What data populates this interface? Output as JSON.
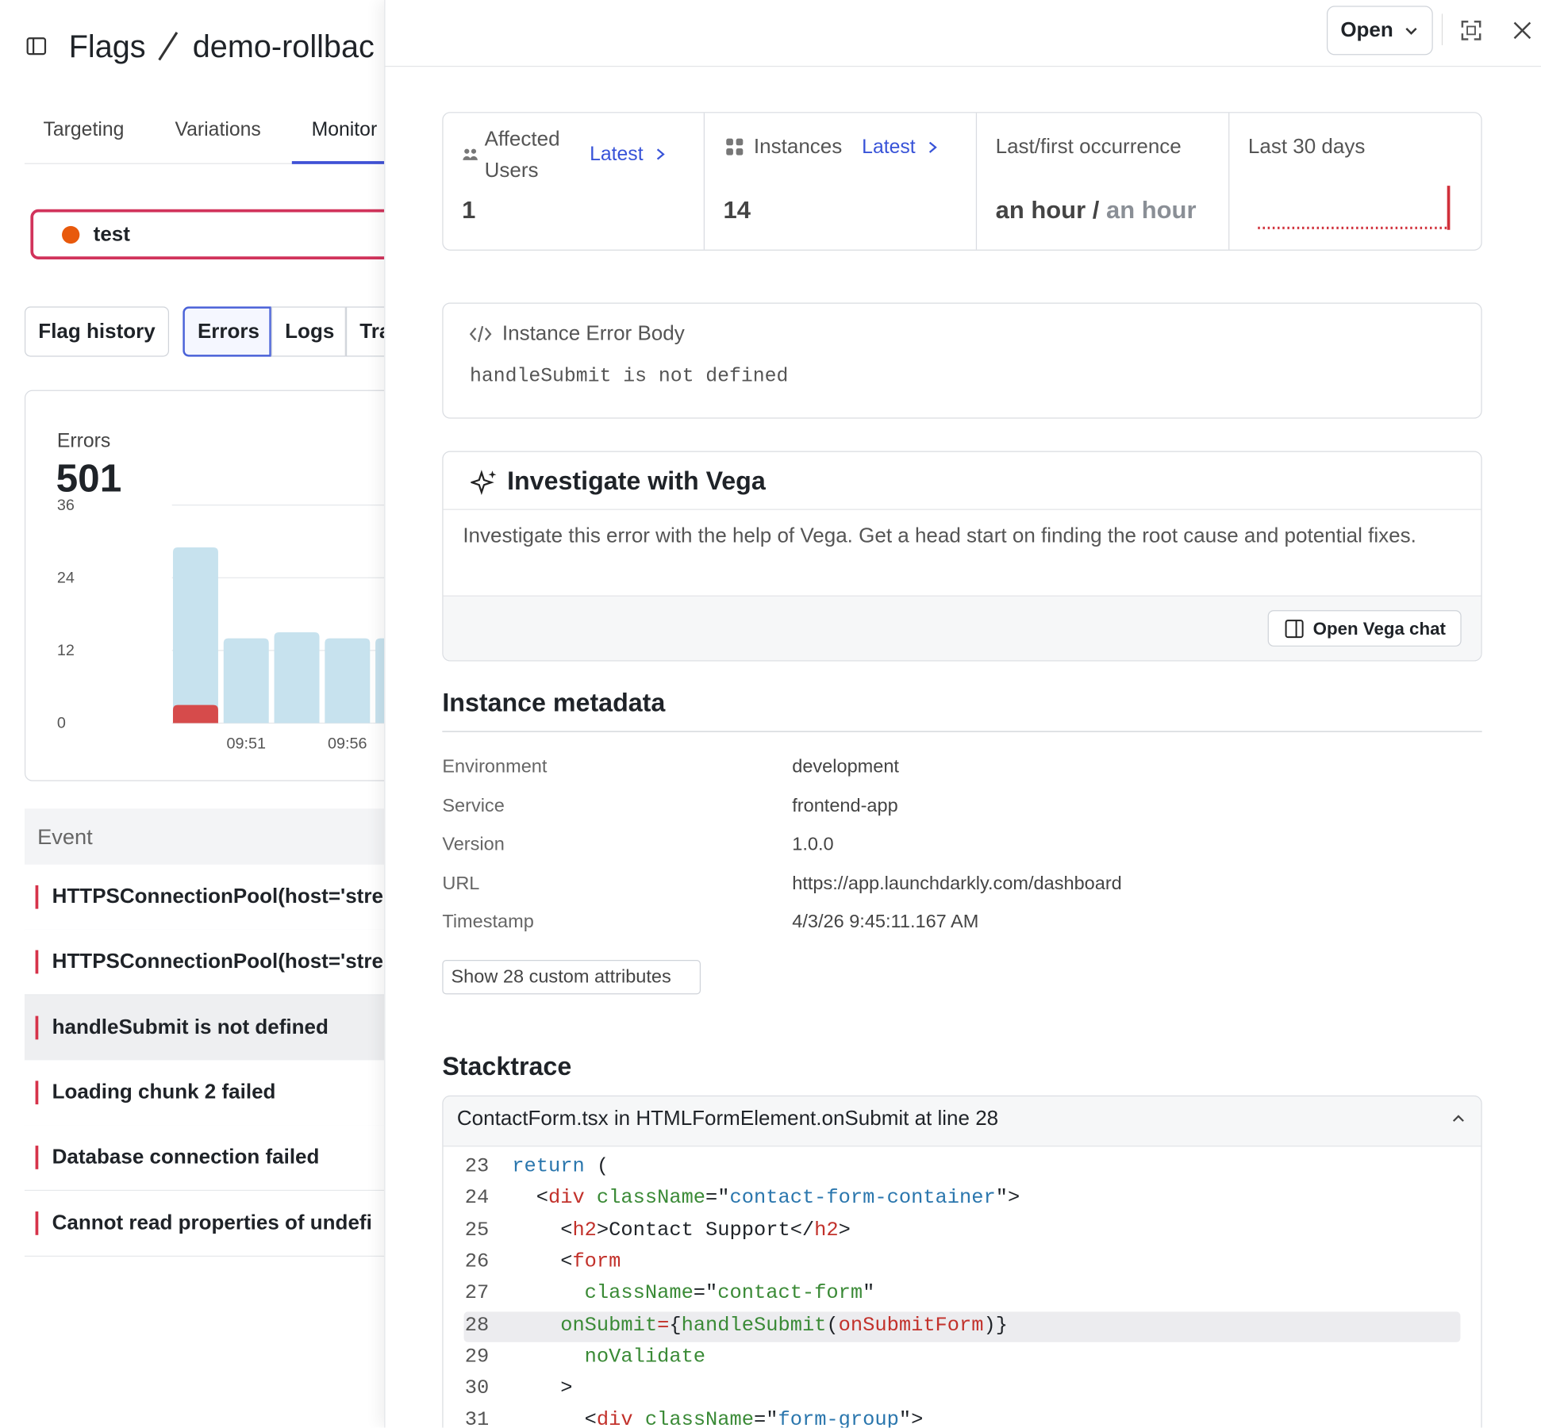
{
  "header": {
    "breadcrumb": [
      "Flags",
      "demo-rollbac"
    ]
  },
  "tabs": {
    "items": [
      "Targeting",
      "Variations",
      "Monitor"
    ],
    "active": 2
  },
  "environment": {
    "name": "test",
    "color": "#e8590c"
  },
  "segments": {
    "items": [
      "Flag history",
      "Errors",
      "Logs",
      "Tra"
    ],
    "active": 1
  },
  "errors_chart": {
    "title": "Errors",
    "total": 501,
    "categories": [
      null,
      "09:51",
      null,
      "09:56",
      null
    ],
    "ylim": [
      0,
      36
    ],
    "yticks": [
      0,
      12,
      24,
      36
    ],
    "grid": true,
    "series": [
      {
        "color": "#c7e2ee",
        "values": [
          29,
          14,
          15,
          14,
          14
        ]
      },
      {
        "color": "#d64b4b",
        "values": [
          3,
          null,
          null,
          null,
          null
        ]
      }
    ]
  },
  "events": {
    "header": "Event",
    "selected": 2,
    "rows": [
      "HTTPSConnectionPool(host='stre",
      "HTTPSConnectionPool(host='stre",
      "handleSubmit is not defined",
      "Loading chunk 2 failed",
      "Database connection failed",
      "Cannot read properties of undefi"
    ]
  },
  "drawer": {
    "status": "Open"
  },
  "stats": {
    "affected_users": {
      "label": "Affected Users",
      "link": "Latest",
      "value": 1
    },
    "instances": {
      "label": "Instances",
      "link": "Latest",
      "value": 14
    },
    "occurrence": {
      "label": "Last/first occurrence",
      "last": "an hour",
      "separator": "/",
      "first": "an hour"
    },
    "trend": {
      "label": "Last 30 days"
    }
  },
  "error_body": {
    "title": "Instance Error Body",
    "message": "handleSubmit is not defined"
  },
  "vega": {
    "title": "Investigate with Vega",
    "description": "Investigate this error with the help of Vega. Get a head start on finding the root cause and potential fixes.",
    "button": "Open Vega chat"
  },
  "metadata": {
    "title": "Instance metadata",
    "button": "Show 28 custom attributes",
    "rows": [
      [
        "Environment",
        "development"
      ],
      [
        "Service",
        "frontend-app"
      ],
      [
        "Version",
        "1.0.0"
      ],
      [
        "URL",
        "https://app.launchdarkly.com/dashboard"
      ],
      [
        "Timestamp",
        "4/3/26 9:45:11.167 AM"
      ]
    ]
  },
  "stacktrace": {
    "title": "Stacktrace",
    "frame": "ContactForm.tsx in HTMLFormElement.onSubmit at line 28",
    "highlight_line": 28,
    "lines": [
      {
        "number": 23,
        "tokens": [
          {
            "text": "return",
            "color": "#2a76ad"
          },
          {
            "text": " (",
            "color": "#1f2328"
          }
        ]
      },
      {
        "number": 24,
        "tokens": [
          {
            "text": "  <",
            "color": "#1f2328"
          },
          {
            "text": "div",
            "color": "#c2312b"
          },
          {
            "text": " className",
            "color": "#3a8a36"
          },
          {
            "text": "=\"",
            "color": "#1f2328"
          },
          {
            "text": "contact-form-container",
            "color": "#2a76ad"
          },
          {
            "text": "\">",
            "color": "#1f2328"
          }
        ]
      },
      {
        "number": 25,
        "tokens": [
          {
            "text": "    <",
            "color": "#1f2328"
          },
          {
            "text": "h2",
            "color": "#c2312b"
          },
          {
            "text": ">Contact Support</",
            "color": "#1f2328"
          },
          {
            "text": "h2",
            "color": "#c2312b"
          },
          {
            "text": ">",
            "color": "#1f2328"
          }
        ]
      },
      {
        "number": 26,
        "tokens": [
          {
            "text": "    <",
            "color": "#1f2328"
          },
          {
            "text": "form",
            "color": "#c2312b"
          }
        ]
      },
      {
        "number": 27,
        "tokens": [
          {
            "text": "      className",
            "color": "#3a8a36"
          },
          {
            "text": "=\"",
            "color": "#1f2328"
          },
          {
            "text": "contact-form",
            "color": "#3a8a36"
          },
          {
            "text": "\"",
            "color": "#1f2328"
          }
        ]
      },
      {
        "number": 28,
        "tokens": [
          {
            "text": "    onSubmit",
            "color": "#3a8a36"
          },
          {
            "text": "=",
            "color": "#c2312b"
          },
          {
            "text": "{",
            "color": "#1f2328"
          },
          {
            "text": "handleSubmit",
            "color": "#3a8a36"
          },
          {
            "text": "(",
            "color": "#1f2328"
          },
          {
            "text": "onSubmitForm",
            "color": "#c2312b"
          },
          {
            "text": ")}",
            "color": "#1f2328"
          }
        ]
      },
      {
        "number": 29,
        "tokens": [
          {
            "text": "      noValidate",
            "color": "#3a8a36"
          }
        ]
      },
      {
        "number": 30,
        "tokens": [
          {
            "text": "    >",
            "color": "#1f2328"
          }
        ]
      },
      {
        "number": 31,
        "tokens": [
          {
            "text": "      <",
            "color": "#1f2328"
          },
          {
            "text": "div",
            "color": "#c2312b"
          },
          {
            "text": " className",
            "color": "#3a8a36"
          },
          {
            "text": "=\"",
            "color": "#1f2328"
          },
          {
            "text": "form-group",
            "color": "#2a76ad"
          },
          {
            "text": "\">",
            "color": "#1f2328"
          }
        ]
      }
    ]
  }
}
